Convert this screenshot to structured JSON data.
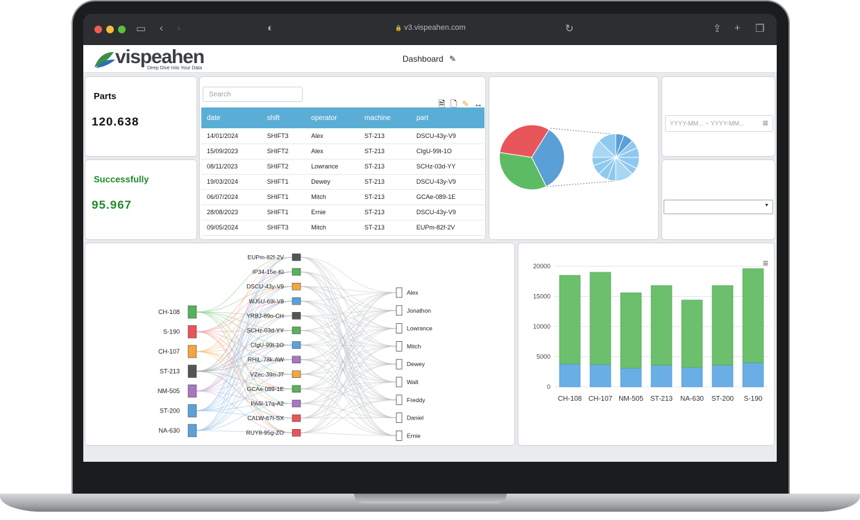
{
  "browser": {
    "url": "v3.vispeahen.com",
    "lock_glyph": "🔒"
  },
  "app": {
    "brand": "vispeahen",
    "tagline": "Deep Dive Into Your Data",
    "dashboard_title": "Dashboard"
  },
  "kpis": {
    "parts_label": "Parts",
    "parts_value": "120.638",
    "success_label": "Successfully",
    "success_value": "95.967"
  },
  "table": {
    "search_placeholder": "Search",
    "columns": [
      "date",
      "shift",
      "operator",
      "machine",
      "part"
    ],
    "rows": [
      [
        "14/01/2024",
        "SHIFT3",
        "Alex",
        "ST-213",
        "DSCU-43y-V9"
      ],
      [
        "15/09/2023",
        "SHIFT2",
        "Alex",
        "ST-213",
        "CIgU-99t-1O"
      ],
      [
        "08/11/2023",
        "SHIFT2",
        "Lowrance",
        "ST-213",
        "SCHz-03d-YY"
      ],
      [
        "19/03/2024",
        "SHIFT1",
        "Dewey",
        "ST-213",
        "DSCU-43y-V9"
      ],
      [
        "06/07/2024",
        "SHIFT1",
        "Mitch",
        "ST-213",
        "GCAe-089-1E"
      ],
      [
        "28/08/2023",
        "SHIFT1",
        "Ernie",
        "ST-213",
        "DSCU-43y-V9"
      ],
      [
        "09/05/2024",
        "SHIFT3",
        "Mitch",
        "ST-213",
        "EUPm-82f-2V"
      ]
    ]
  },
  "filters": {
    "date_range_placeholder": "YYYY-MM... ~ YYYY-MM...",
    "dropdown_value": ""
  },
  "colors": {
    "accent": "#5aaed6",
    "kpi_text": "#1f8a2a",
    "pie_red": "#e8555a",
    "pie_blue": "#5a9fd6",
    "pie_green": "#5dbb63",
    "bar_green": "#6cbf6c",
    "bar_blue": "#6aaee6"
  },
  "sankey": {
    "sources": [
      "CH-108",
      "S-190",
      "CH-107",
      "ST-213",
      "NM-505",
      "ST-200",
      "NA-630"
    ],
    "source_colors": [
      "#57b25a",
      "#e8555a",
      "#f5a540",
      "#555555",
      "#a678c2",
      "#5aa2dc",
      "#5aa2dc"
    ],
    "parts": [
      "EUPm-82f-2V",
      "IP34-15e-KI",
      "DSCU-43y-V9",
      "WJ5U-69l-V8",
      "YRBJ-89o-CH",
      "SCHz-03d-YY",
      "CIgU-99t-1O",
      "RHIL-78k-AW",
      "VZec-39n-J7",
      "GCAe-089-1E",
      "PA6l-17q-A2",
      "CALW-67t-SX",
      "RUY8-95g-ZO"
    ],
    "part_colors": [
      "#555555",
      "#57b25a",
      "#f5a540",
      "#5aa2dc",
      "#555555",
      "#57b25a",
      "#5aa2dc",
      "#a678c2",
      "#f5a540",
      "#57b25a",
      "#a678c2",
      "#e8555a",
      "#e8555a"
    ],
    "operators": [
      "Alex",
      "Jonathon",
      "Lowrance",
      "Mitch",
      "Dewey",
      "Walt",
      "Freddy",
      "Daniel",
      "Ernie"
    ]
  },
  "chart_data": {
    "type": "bar",
    "categories": [
      "CH-108",
      "CH-107",
      "NM-505",
      "ST-213",
      "NA-630",
      "ST-200",
      "S-190"
    ],
    "series": [
      {
        "values": [
          3800,
          3700,
          3100,
          3600,
          3200,
          3600,
          4000
        ]
      },
      {
        "values": [
          14700,
          15300,
          12500,
          13200,
          11200,
          13200,
          15600
        ]
      }
    ],
    "stacked": true,
    "ylim": [
      0,
      20000
    ],
    "yticks": [
      "20000",
      "15000",
      "10000",
      "5000",
      "0"
    ],
    "legend": "none"
  }
}
